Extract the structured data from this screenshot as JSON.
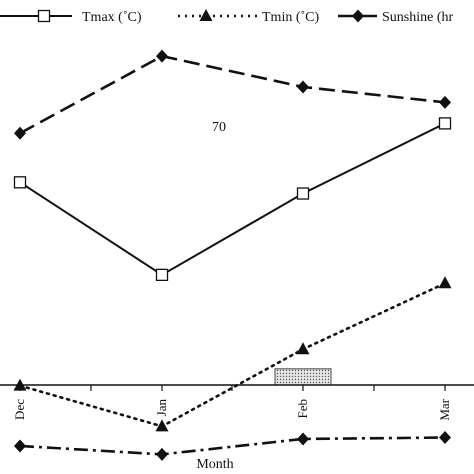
{
  "chart_data": {
    "type": "line",
    "categories": [
      "Dec",
      "Jan",
      "Feb",
      "Mar"
    ],
    "xlabel": "Month",
    "ylabel": "",
    "annotations": [
      "70"
    ],
    "legend_position": "top",
    "bar_series": {
      "name": "",
      "fill": "dotted-gray",
      "categories": [
        "Jan",
        "Feb"
      ],
      "values": [
        7,
        57
      ]
    },
    "series": [
      {
        "name": "Tmax (˚C)",
        "marker": "square-open",
        "dash": "solid",
        "values": [
          190,
          124,
          182,
          232
        ]
      },
      {
        "name": "Tmin (˚C)",
        "marker": "triangle",
        "dash": "dotted",
        "values": [
          45,
          16,
          71,
          118
        ]
      },
      {
        "name": "Sunshine (hr",
        "marker": "diamond",
        "dash": "dash-dot-long",
        "values": [
          225,
          280,
          258,
          247
        ]
      },
      {
        "name": "",
        "marker": "diamond",
        "dash": "dash-dot",
        "values": [
          2,
          -4,
          7,
          8
        ]
      }
    ],
    "ylim": [
      -18,
      320
    ]
  },
  "colors": {
    "line": "#111111",
    "bar_fill": "#e4e4e4",
    "background": "#ffffff"
  }
}
